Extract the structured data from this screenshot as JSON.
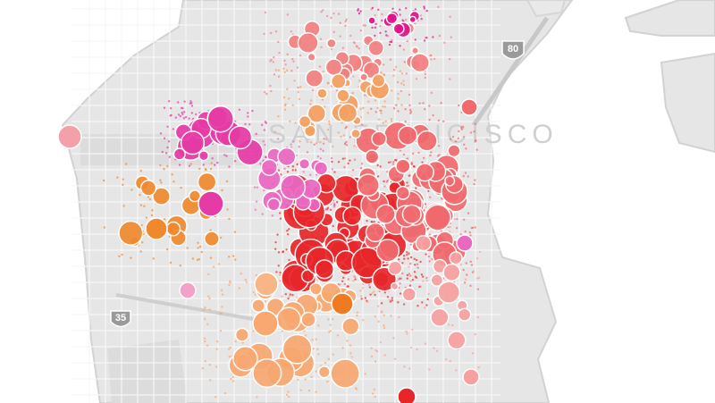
{
  "map": {
    "highway_shields": [
      "80",
      "35"
    ],
    "city_label": "SAN FRANCISCO"
  }
}
